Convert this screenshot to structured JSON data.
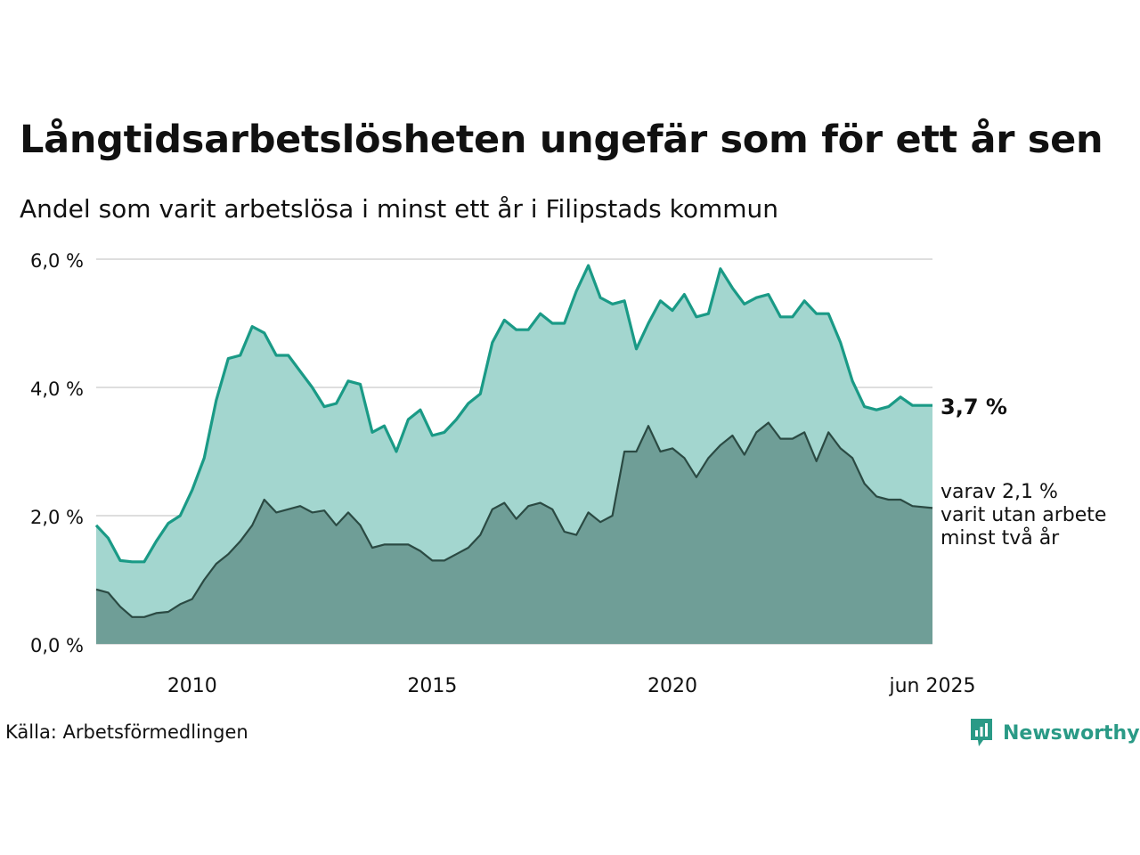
{
  "title": "Långtidsarbetslösheten ungefär som för ett år sen",
  "subtitle": "Andel som varit arbetslösa i minst ett år i Filipstads kommun",
  "source": "Källa: Arbetsförmedlingen",
  "brand": "Newsworthy",
  "colors": {
    "upper_line": "#1a9a86",
    "upper_fill": "#a3d6cf",
    "lower_line": "#2b4a43",
    "lower_fill": "#6f9e97",
    "grid": "#dedede"
  },
  "icons": {
    "logo": "newsworthy-logo-icon"
  },
  "chart_data": {
    "type": "area",
    "ylim": [
      0,
      6
    ],
    "y_ticks": [
      0,
      2,
      4,
      6
    ],
    "y_tick_labels": [
      "0,0 %",
      "2,0 %",
      "4,0 %",
      "6,0 %"
    ],
    "x_range": [
      "2008-01",
      "2025-06"
    ],
    "x_ticks": [
      "2010-01",
      "2015-01",
      "2020-01",
      "2025-06"
    ],
    "x_tick_labels": [
      "2010",
      "2015",
      "2020",
      "jun 2025"
    ],
    "grid": true,
    "series": [
      {
        "label": "3,7 %",
        "points": [
          [
            "2008-01",
            1.85
          ],
          [
            "2008-04",
            1.65
          ],
          [
            "2008-07",
            1.3
          ],
          [
            "2008-10",
            1.28
          ],
          [
            "2009-01",
            1.28
          ],
          [
            "2009-04",
            1.6
          ],
          [
            "2009-07",
            1.88
          ],
          [
            "2009-10",
            2.0
          ],
          [
            "2010-01",
            2.4
          ],
          [
            "2010-04",
            2.9
          ],
          [
            "2010-07",
            3.8
          ],
          [
            "2010-10",
            4.45
          ],
          [
            "2011-01",
            4.5
          ],
          [
            "2011-04",
            4.95
          ],
          [
            "2011-07",
            4.85
          ],
          [
            "2011-10",
            4.5
          ],
          [
            "2012-01",
            4.5
          ],
          [
            "2012-04",
            4.25
          ],
          [
            "2012-07",
            4.0
          ],
          [
            "2012-10",
            3.7
          ],
          [
            "2013-01",
            3.75
          ],
          [
            "2013-04",
            4.1
          ],
          [
            "2013-07",
            4.05
          ],
          [
            "2013-10",
            3.3
          ],
          [
            "2014-01",
            3.4
          ],
          [
            "2014-04",
            3.0
          ],
          [
            "2014-07",
            3.5
          ],
          [
            "2014-10",
            3.65
          ],
          [
            "2015-01",
            3.25
          ],
          [
            "2015-04",
            3.3
          ],
          [
            "2015-07",
            3.5
          ],
          [
            "2015-10",
            3.75
          ],
          [
            "2016-01",
            3.9
          ],
          [
            "2016-04",
            4.7
          ],
          [
            "2016-07",
            5.05
          ],
          [
            "2016-10",
            4.9
          ],
          [
            "2017-01",
            4.9
          ],
          [
            "2017-04",
            5.15
          ],
          [
            "2017-07",
            5.0
          ],
          [
            "2017-10",
            5.0
          ],
          [
            "2018-01",
            5.5
          ],
          [
            "2018-04",
            5.9
          ],
          [
            "2018-07",
            5.4
          ],
          [
            "2018-10",
            5.3
          ],
          [
            "2019-01",
            5.35
          ],
          [
            "2019-04",
            4.6
          ],
          [
            "2019-07",
            5.0
          ],
          [
            "2019-10",
            5.35
          ],
          [
            "2020-01",
            5.2
          ],
          [
            "2020-04",
            5.45
          ],
          [
            "2020-07",
            5.1
          ],
          [
            "2020-10",
            5.15
          ],
          [
            "2021-01",
            5.85
          ],
          [
            "2021-04",
            5.55
          ],
          [
            "2021-07",
            5.3
          ],
          [
            "2021-10",
            5.4
          ],
          [
            "2022-01",
            5.45
          ],
          [
            "2022-04",
            5.1
          ],
          [
            "2022-07",
            5.1
          ],
          [
            "2022-10",
            5.35
          ],
          [
            "2023-01",
            5.15
          ],
          [
            "2023-04",
            5.15
          ],
          [
            "2023-07",
            4.7
          ],
          [
            "2023-10",
            4.1
          ],
          [
            "2024-01",
            3.7
          ],
          [
            "2024-04",
            3.65
          ],
          [
            "2024-07",
            3.7
          ],
          [
            "2024-10",
            3.85
          ],
          [
            "2025-01",
            3.72
          ],
          [
            "2025-06",
            3.72
          ]
        ]
      },
      {
        "label": "varav 2,1 % varit utan arbete minst två år",
        "points": [
          [
            "2008-01",
            0.85
          ],
          [
            "2008-04",
            0.8
          ],
          [
            "2008-07",
            0.58
          ],
          [
            "2008-10",
            0.42
          ],
          [
            "2009-01",
            0.42
          ],
          [
            "2009-04",
            0.48
          ],
          [
            "2009-07",
            0.5
          ],
          [
            "2009-10",
            0.62
          ],
          [
            "2010-01",
            0.7
          ],
          [
            "2010-04",
            1.0
          ],
          [
            "2010-07",
            1.25
          ],
          [
            "2010-10",
            1.4
          ],
          [
            "2011-01",
            1.6
          ],
          [
            "2011-04",
            1.85
          ],
          [
            "2011-07",
            2.25
          ],
          [
            "2011-10",
            2.05
          ],
          [
            "2012-01",
            2.1
          ],
          [
            "2012-04",
            2.15
          ],
          [
            "2012-07",
            2.05
          ],
          [
            "2012-10",
            2.08
          ],
          [
            "2013-01",
            1.85
          ],
          [
            "2013-04",
            2.05
          ],
          [
            "2013-07",
            1.85
          ],
          [
            "2013-10",
            1.5
          ],
          [
            "2014-01",
            1.55
          ],
          [
            "2014-04",
            1.55
          ],
          [
            "2014-07",
            1.55
          ],
          [
            "2014-10",
            1.45
          ],
          [
            "2015-01",
            1.3
          ],
          [
            "2015-04",
            1.3
          ],
          [
            "2015-07",
            1.4
          ],
          [
            "2015-10",
            1.5
          ],
          [
            "2016-01",
            1.7
          ],
          [
            "2016-04",
            2.1
          ],
          [
            "2016-07",
            2.2
          ],
          [
            "2016-10",
            1.95
          ],
          [
            "2017-01",
            2.15
          ],
          [
            "2017-04",
            2.2
          ],
          [
            "2017-07",
            2.1
          ],
          [
            "2017-10",
            1.75
          ],
          [
            "2018-01",
            1.7
          ],
          [
            "2018-04",
            2.05
          ],
          [
            "2018-07",
            1.9
          ],
          [
            "2018-10",
            2.0
          ],
          [
            "2019-01",
            3.0
          ],
          [
            "2019-04",
            3.0
          ],
          [
            "2019-07",
            3.4
          ],
          [
            "2019-10",
            3.0
          ],
          [
            "2020-01",
            3.05
          ],
          [
            "2020-04",
            2.9
          ],
          [
            "2020-07",
            2.6
          ],
          [
            "2020-10",
            2.9
          ],
          [
            "2021-01",
            3.1
          ],
          [
            "2021-04",
            3.25
          ],
          [
            "2021-07",
            2.95
          ],
          [
            "2021-10",
            3.3
          ],
          [
            "2022-01",
            3.45
          ],
          [
            "2022-04",
            3.2
          ],
          [
            "2022-07",
            3.2
          ],
          [
            "2022-10",
            3.3
          ],
          [
            "2023-01",
            2.85
          ],
          [
            "2023-04",
            3.3
          ],
          [
            "2023-07",
            3.05
          ],
          [
            "2023-10",
            2.9
          ],
          [
            "2024-01",
            2.5
          ],
          [
            "2024-04",
            2.3
          ],
          [
            "2024-07",
            2.25
          ],
          [
            "2024-10",
            2.25
          ],
          [
            "2025-01",
            2.15
          ],
          [
            "2025-06",
            2.12
          ]
        ]
      }
    ]
  }
}
